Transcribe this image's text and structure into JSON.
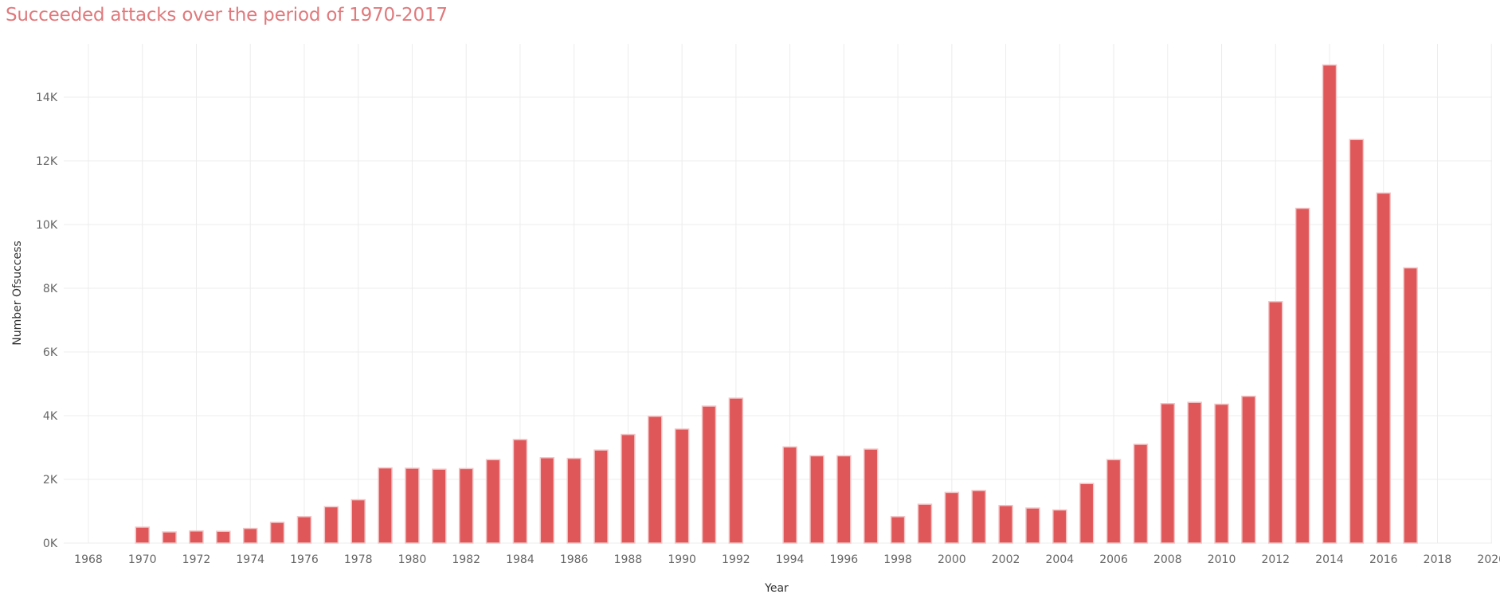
{
  "chart_data": {
    "type": "bar",
    "title": "Succeeded attacks over the period of 1970-2017",
    "xlabel": "Year",
    "ylabel": "Number Ofsuccess",
    "x": [
      1970,
      1971,
      1972,
      1973,
      1974,
      1975,
      1976,
      1977,
      1978,
      1979,
      1980,
      1981,
      1982,
      1983,
      1984,
      1985,
      1986,
      1987,
      1988,
      1989,
      1990,
      1991,
      1992,
      1994,
      1995,
      1996,
      1997,
      1998,
      1999,
      2000,
      2001,
      2002,
      2003,
      2004,
      2005,
      2006,
      2007,
      2008,
      2009,
      2010,
      2011,
      2012,
      2013,
      2014,
      2015,
      2016,
      2017
    ],
    "values": [
      500,
      350,
      380,
      370,
      460,
      650,
      830,
      1140,
      1360,
      2360,
      2350,
      2320,
      2340,
      2620,
      3250,
      2680,
      2660,
      2920,
      3410,
      3980,
      3580,
      4300,
      4550,
      3020,
      2740,
      2740,
      2950,
      830,
      1220,
      1590,
      1650,
      1180,
      1100,
      1040,
      1870,
      2620,
      3100,
      4380,
      4420,
      4360,
      4610,
      7580,
      10510,
      15010,
      12670,
      10990,
      8640
    ],
    "x_ticks": [
      "1968",
      "1970",
      "1972",
      "1974",
      "1976",
      "1978",
      "1980",
      "1982",
      "1984",
      "1986",
      "1988",
      "1990",
      "1992",
      "1994",
      "1996",
      "1998",
      "2000",
      "2002",
      "2004",
      "2006",
      "2008",
      "2010",
      "2012",
      "2014",
      "2016",
      "2018",
      "2020"
    ],
    "y_ticks": [
      "0K",
      "2K",
      "4K",
      "6K",
      "8K",
      "10K",
      "12K",
      "14K"
    ],
    "xlim": [
      1967,
      2021.5
    ],
    "ylim": [
      0,
      15800
    ],
    "grid": true,
    "bar_color": "#e05759",
    "bar_border_color": "#f2c6c7",
    "title_color": "#e0797c"
  }
}
